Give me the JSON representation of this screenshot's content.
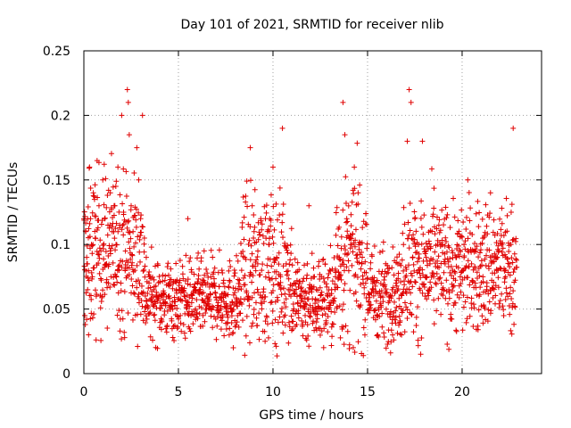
{
  "chart_data": {
    "type": "scatter",
    "title": "Day 101 of 2021, SRMTID for receiver nlib",
    "xlabel": "GPS time / hours",
    "ylabel": "SRMTID / TECUs",
    "xlim": [
      0,
      24.2
    ],
    "ylim": [
      0,
      0.25
    ],
    "x_ticks": [
      0,
      5,
      10,
      15,
      20
    ],
    "x_tick_labels": [
      "0",
      "5",
      "10",
      "15",
      "20"
    ],
    "y_ticks": [
      0,
      0.05,
      0.1,
      0.15,
      0.2,
      0.25
    ],
    "y_tick_labels": [
      "0",
      "0.05",
      "0.1",
      "0.15",
      "0.2",
      "0.25"
    ],
    "grid": true,
    "marker": "+",
    "color": "#e00000",
    "x_range_data": [
      0.0,
      22.9
    ],
    "points_estimated": 2000,
    "series": [
      {
        "points": [
          [
            0.05,
            0.045
          ],
          [
            0.1,
            0.11
          ],
          [
            0.15,
            0.09
          ],
          [
            0.2,
            0.065
          ],
          [
            0.25,
            0.03
          ],
          [
            0.3,
            0.16
          ],
          [
            0.35,
            0.12
          ],
          [
            0.4,
            0.1
          ],
          [
            0.45,
            0.075
          ],
          [
            0.5,
            0.14
          ],
          [
            0.6,
            0.105
          ],
          [
            0.7,
            0.165
          ],
          [
            0.8,
            0.13
          ],
          [
            0.9,
            0.095
          ],
          [
            1.0,
            0.15
          ],
          [
            1.1,
            0.12
          ],
          [
            1.2,
            0.085
          ],
          [
            1.3,
            0.07
          ],
          [
            1.4,
            0.14
          ],
          [
            1.5,
            0.11
          ],
          [
            1.6,
            0.13
          ],
          [
            1.7,
            0.1
          ],
          [
            1.8,
            0.16
          ],
          [
            1.9,
            0.115
          ],
          [
            2.0,
            0.2
          ],
          [
            2.1,
            0.125
          ],
          [
            2.2,
            0.095
          ],
          [
            2.3,
            0.22
          ],
          [
            2.35,
            0.21
          ],
          [
            2.4,
            0.185
          ],
          [
            2.5,
            0.13
          ],
          [
            2.6,
            0.11
          ],
          [
            2.7,
            0.08
          ],
          [
            2.8,
            0.175
          ],
          [
            2.9,
            0.15
          ],
          [
            3.0,
            0.12
          ],
          [
            3.1,
            0.2
          ],
          [
            3.2,
            0.105
          ],
          [
            3.3,
            0.09
          ],
          [
            3.5,
            0.075
          ],
          [
            3.7,
            0.065
          ],
          [
            3.9,
            0.085
          ],
          [
            4.1,
            0.06
          ],
          [
            4.3,
            0.055
          ],
          [
            4.5,
            0.07
          ],
          [
            4.7,
            0.05
          ],
          [
            4.9,
            0.065
          ],
          [
            5.1,
            0.045
          ],
          [
            5.3,
            0.06
          ],
          [
            5.5,
            0.12
          ],
          [
            5.7,
            0.055
          ],
          [
            5.9,
            0.05
          ],
          [
            6.1,
            0.065
          ],
          [
            6.3,
            0.045
          ],
          [
            6.5,
            0.06
          ],
          [
            6.7,
            0.05
          ],
          [
            6.9,
            0.07
          ],
          [
            7.1,
            0.055
          ],
          [
            7.3,
            0.08
          ],
          [
            7.5,
            0.06
          ],
          [
            7.7,
            0.035
          ],
          [
            7.9,
            0.02
          ],
          [
            8.1,
            0.04
          ],
          [
            8.3,
            0.055
          ],
          [
            8.5,
            0.09
          ],
          [
            8.7,
            0.06
          ],
          [
            8.8,
            0.175
          ],
          [
            8.9,
            0.13
          ],
          [
            9.0,
            0.11
          ],
          [
            9.2,
            0.095
          ],
          [
            9.4,
            0.08
          ],
          [
            9.6,
            0.12
          ],
          [
            9.8,
            0.1
          ],
          [
            10.0,
            0.16
          ],
          [
            10.2,
            0.09
          ],
          [
            10.4,
            0.075
          ],
          [
            10.5,
            0.19
          ],
          [
            10.7,
            0.085
          ],
          [
            10.9,
            0.065
          ],
          [
            11.1,
            0.07
          ],
          [
            11.3,
            0.055
          ],
          [
            11.5,
            0.06
          ],
          [
            11.7,
            0.045
          ],
          [
            11.9,
            0.13
          ],
          [
            12.1,
            0.05
          ],
          [
            12.3,
            0.04
          ],
          [
            12.5,
            0.035
          ],
          [
            12.7,
            0.05
          ],
          [
            12.9,
            0.06
          ],
          [
            13.1,
            0.065
          ],
          [
            13.3,
            0.075
          ],
          [
            13.5,
            0.09
          ],
          [
            13.7,
            0.21
          ],
          [
            13.8,
            0.185
          ],
          [
            13.9,
            0.12
          ],
          [
            14.1,
            0.1
          ],
          [
            14.3,
            0.16
          ],
          [
            14.5,
            0.14
          ],
          [
            14.7,
            0.085
          ],
          [
            14.9,
            0.07
          ],
          [
            15.1,
            0.05
          ],
          [
            15.3,
            0.065
          ],
          [
            15.5,
            0.045
          ],
          [
            15.7,
            0.06
          ],
          [
            15.9,
            0.075
          ],
          [
            16.1,
            0.055
          ],
          [
            16.3,
            0.065
          ],
          [
            16.5,
            0.07
          ],
          [
            16.7,
            0.085
          ],
          [
            16.9,
            0.1
          ],
          [
            17.1,
            0.18
          ],
          [
            17.2,
            0.22
          ],
          [
            17.3,
            0.21
          ],
          [
            17.5,
            0.12
          ],
          [
            17.7,
            0.1
          ],
          [
            17.9,
            0.18
          ],
          [
            18.1,
            0.09
          ],
          [
            18.3,
            0.085
          ],
          [
            18.5,
            0.075
          ],
          [
            18.7,
            0.1
          ],
          [
            18.9,
            0.07
          ],
          [
            19.1,
            0.085
          ],
          [
            19.3,
            0.065
          ],
          [
            19.5,
            0.08
          ],
          [
            19.7,
            0.09
          ],
          [
            19.9,
            0.075
          ],
          [
            20.1,
            0.1
          ],
          [
            20.3,
            0.15
          ],
          [
            20.5,
            0.085
          ],
          [
            20.7,
            0.07
          ],
          [
            20.9,
            0.06
          ],
          [
            21.1,
            0.075
          ],
          [
            21.3,
            0.065
          ],
          [
            21.5,
            0.14
          ],
          [
            21.7,
            0.09
          ],
          [
            21.9,
            0.08
          ],
          [
            22.1,
            0.1
          ],
          [
            22.3,
            0.075
          ],
          [
            22.5,
            0.085
          ],
          [
            22.7,
            0.19
          ]
        ]
      }
    ]
  }
}
